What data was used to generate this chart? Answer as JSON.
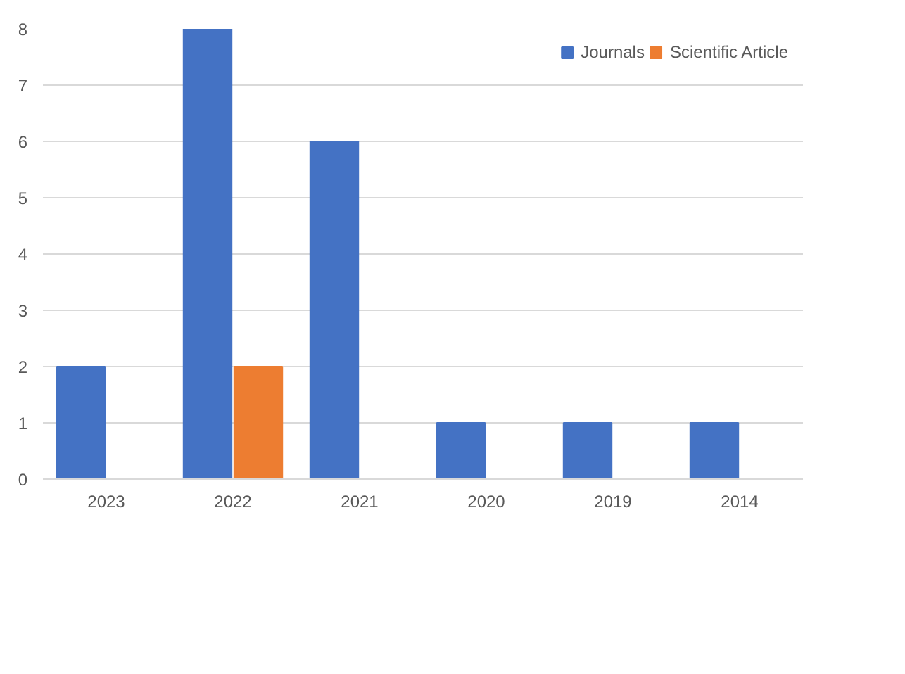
{
  "chart_data": {
    "type": "bar",
    "categories": [
      "2023",
      "2022",
      "2021",
      "2020",
      "2019",
      "2014"
    ],
    "series": [
      {
        "name": "Journals",
        "color": "#4472c4",
        "values": [
          2,
          8,
          6,
          1,
          1,
          1
        ]
      },
      {
        "name": "Scientific Article",
        "color": "#ed7d31",
        "values": [
          0,
          2,
          0,
          0,
          0,
          0
        ]
      }
    ],
    "ylim": [
      0,
      8
    ],
    "yticks": [
      0,
      1,
      2,
      3,
      4,
      5,
      6,
      7,
      8
    ],
    "grid": "y",
    "legend": "top right"
  }
}
